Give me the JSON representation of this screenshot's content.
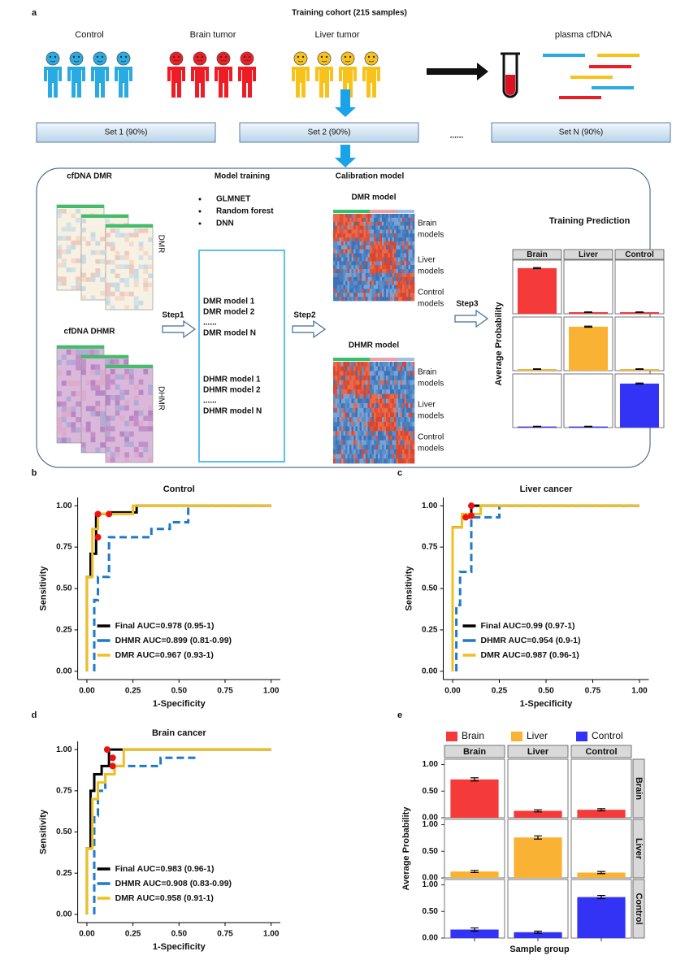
{
  "panel_a": {
    "label": "a",
    "title": "Training cohort (215 samples)",
    "groups": [
      "Control",
      "Brain tumor",
      "Liver tumor"
    ],
    "plasma": "plasma cfDNA",
    "sets": [
      "Set 1 (90%)",
      "Set 2 (90%)",
      "Set N (90%)"
    ],
    "ellipsis": "......",
    "sections": {
      "dmr": "cfDNA DMR",
      "dhmr": "cfDNA DHMR",
      "training": "Model training",
      "calibration": "Calibration model"
    },
    "methods": [
      "GLMNET",
      "Random forest",
      "DNN"
    ],
    "heatmap_labels": [
      "DMR",
      "DHMR"
    ],
    "steps": [
      "Step1",
      "Step2",
      "Step3"
    ],
    "dmr_models": [
      "DMR model 1",
      "DMR model 2",
      "......",
      "DMR model N"
    ],
    "dhmr_models": [
      "DHMR model 1",
      "DHMR model 2",
      "......",
      "DHMR model N"
    ],
    "calibration_titles": [
      "DMR model",
      "DHMR model"
    ],
    "calibration_rows": [
      [
        "Brain",
        "models"
      ],
      [
        "Liver",
        "models"
      ],
      [
        "Control",
        "models"
      ]
    ]
  },
  "chart_data": [
    {
      "type": "facet_bar",
      "title": "Training Prediction",
      "ylabel": "Average Probability",
      "columns": [
        "Brain",
        "Liver",
        "Control"
      ],
      "ylim": [
        0,
        1
      ],
      "series": [
        {
          "color": "#f53a3a",
          "values": [
            0.85,
            0.03,
            0.03
          ],
          "errors": [
            0.01,
            0.005,
            0.005
          ]
        },
        {
          "color": "#f9b233",
          "values": [
            0.03,
            0.82,
            0.03
          ],
          "errors": [
            0.005,
            0.01,
            0.005
          ]
        },
        {
          "color": "#3333f5",
          "values": [
            0.02,
            0.02,
            0.82
          ],
          "errors": [
            0.005,
            0.005,
            0.01
          ]
        }
      ]
    },
    {
      "type": "roc",
      "label": "b",
      "title": "Control",
      "xlabel": "1-Specificity",
      "ylabel": "Sensitivity",
      "xlim": [
        -0.05,
        1.05
      ],
      "ylim": [
        -0.05,
        1.05
      ],
      "xticks": [
        {
          "value": 0,
          "label": "0.00"
        },
        {
          "value": 0.25,
          "label": "0.25"
        },
        {
          "value": 0.5,
          "label": "0.50"
        },
        {
          "value": 0.75,
          "label": "0.75"
        },
        {
          "value": 1,
          "label": "1.00"
        }
      ],
      "yticks": [
        {
          "value": 0,
          "label": "0.00"
        },
        {
          "value": 0.25,
          "label": "0.25"
        },
        {
          "value": 0.5,
          "label": "0.50"
        },
        {
          "value": 0.75,
          "label": "0.75"
        },
        {
          "value": 1,
          "label": "1.00"
        }
      ],
      "series": [
        {
          "name": "Final AUC=0.978 (0.95-1)",
          "color": "#000000",
          "linestyle": "solid",
          "x": [
            0,
            0,
            0.02,
            0.02,
            0.05,
            0.05,
            0.12,
            0.12,
            0.27,
            0.27,
            1
          ],
          "values": [
            0,
            0.57,
            0.57,
            0.71,
            0.71,
            0.95,
            0.95,
            0.96,
            0.96,
            1,
            1
          ]
        },
        {
          "name": "DHMR AUC=0.899 (0.81-0.99)",
          "color": "#1f78c8",
          "linestyle": "dashed",
          "x": [
            0.04,
            0.04,
            0.06,
            0.06,
            0.12,
            0.12,
            0.35,
            0.35,
            0.45,
            0.45,
            0.55,
            0.55,
            1
          ],
          "values": [
            0,
            0.43,
            0.43,
            0.57,
            0.57,
            0.81,
            0.81,
            0.86,
            0.86,
            0.9,
            0.9,
            1,
            1
          ]
        },
        {
          "name": "DMR AUC=0.967 (0.93-1)",
          "color": "#f0c020",
          "linestyle": "solid",
          "x": [
            0,
            0,
            0.03,
            0.03,
            0.06,
            0.06,
            0.25,
            0.25,
            1
          ],
          "values": [
            0,
            0.57,
            0.57,
            0.86,
            0.86,
            0.95,
            0.95,
            1,
            1
          ]
        }
      ],
      "cutoff_points": {
        "color": "#ee1111",
        "x": [
          0.06,
          0.12,
          0.06
        ],
        "values": [
          0.95,
          0.95,
          0.81
        ]
      }
    },
    {
      "type": "roc",
      "label": "c",
      "title": "Liver cancer",
      "xlabel": "1-Specificity",
      "ylabel": "Sensitivity",
      "xlim": [
        -0.05,
        1.05
      ],
      "ylim": [
        -0.05,
        1.05
      ],
      "xticks": [
        {
          "value": 0,
          "label": "0.00"
        },
        {
          "value": 0.25,
          "label": "0.25"
        },
        {
          "value": 0.5,
          "label": "0.50"
        },
        {
          "value": 0.75,
          "label": "0.75"
        },
        {
          "value": 1,
          "label": "1.00"
        }
      ],
      "yticks": [
        {
          "value": 0,
          "label": "0.00"
        },
        {
          "value": 0.25,
          "label": "0.25"
        },
        {
          "value": 0.5,
          "label": "0.50"
        },
        {
          "value": 0.75,
          "label": "0.75"
        },
        {
          "value": 1,
          "label": "1.00"
        }
      ],
      "series": [
        {
          "name": "Final AUC=0.99 (0.97-1)",
          "color": "#000000",
          "linestyle": "solid",
          "x": [
            0,
            0,
            0.05,
            0.05,
            0.1,
            0.1,
            1
          ],
          "values": [
            0,
            0.87,
            0.87,
            0.93,
            0.93,
            1,
            1
          ]
        },
        {
          "name": "DHMR AUC=0.954 (0.9-1)",
          "color": "#1f78c8",
          "linestyle": "dashed",
          "x": [
            0.02,
            0.02,
            0.04,
            0.04,
            0.1,
            0.1,
            0.25,
            0.25,
            1
          ],
          "values": [
            0,
            0.4,
            0.4,
            0.6,
            0.6,
            0.93,
            0.93,
            1,
            1
          ]
        },
        {
          "name": "DMR AUC=0.987 (0.96-1)",
          "color": "#f0c020",
          "linestyle": "solid",
          "x": [
            0,
            0,
            0.05,
            0.05,
            0.15,
            0.15,
            1
          ],
          "values": [
            0,
            0.87,
            0.87,
            0.95,
            0.95,
            1,
            1
          ]
        }
      ],
      "cutoff_points": {
        "color": "#ee1111",
        "x": [
          0.07,
          0.1,
          0.1
        ],
        "values": [
          0.93,
          0.94,
          1
        ]
      }
    },
    {
      "type": "roc",
      "label": "d",
      "title": "Brain cancer",
      "xlabel": "1-Specificity",
      "ylabel": "Sensitivity",
      "xlim": [
        -0.05,
        1.05
      ],
      "ylim": [
        -0.05,
        1.05
      ],
      "xticks": [
        {
          "value": 0,
          "label": "0.00"
        },
        {
          "value": 0.25,
          "label": "0.25"
        },
        {
          "value": 0.5,
          "label": "0.50"
        },
        {
          "value": 0.75,
          "label": "0.75"
        },
        {
          "value": 1,
          "label": "1.00"
        }
      ],
      "yticks": [
        {
          "value": 0,
          "label": "0.00"
        },
        {
          "value": 0.25,
          "label": "0.25"
        },
        {
          "value": 0.5,
          "label": "0.50"
        },
        {
          "value": 0.75,
          "label": "0.75"
        },
        {
          "value": 1,
          "label": "1.00"
        }
      ],
      "series": [
        {
          "name": "Final AUC=0.983 (0.96-1)",
          "color": "#000000",
          "linestyle": "solid",
          "x": [
            0,
            0,
            0.02,
            0.02,
            0.04,
            0.04,
            0.08,
            0.08,
            0.12,
            0.12,
            1
          ],
          "values": [
            0,
            0.4,
            0.4,
            0.75,
            0.75,
            0.85,
            0.85,
            0.9,
            0.9,
            1,
            1
          ]
        },
        {
          "name": "DHMR AUC=0.908 (0.83-0.99)",
          "color": "#1f78c8",
          "linestyle": "dashed",
          "x": [
            0.04,
            0.04,
            0.06,
            0.06,
            0.1,
            0.1,
            0.15,
            0.15,
            0.4,
            0.4,
            0.6
          ],
          "values": [
            0,
            0.6,
            0.6,
            0.75,
            0.75,
            0.85,
            0.85,
            0.9,
            0.9,
            0.95,
            0.95
          ]
        },
        {
          "name": "DMR AUC=0.958 (0.91-1)",
          "color": "#f0c020",
          "linestyle": "solid",
          "x": [
            0,
            0,
            0.03,
            0.03,
            0.06,
            0.06,
            0.1,
            0.1,
            0.15,
            0.15,
            0.2,
            0.2,
            1
          ],
          "values": [
            0,
            0.4,
            0.4,
            0.7,
            0.7,
            0.8,
            0.8,
            0.85,
            0.85,
            0.9,
            0.9,
            1,
            1
          ]
        }
      ],
      "cutoff_points": {
        "color": "#ee1111",
        "x": [
          0.11,
          0.14,
          0.14
        ],
        "values": [
          1,
          0.95,
          0.9
        ]
      }
    },
    {
      "type": "facet_bar",
      "label": "e",
      "legend": true,
      "xlabel": "Sample group",
      "ylabel": "Average Probability",
      "columns": [
        "Brain",
        "Liver",
        "Control"
      ],
      "ylim": [
        0,
        1.1
      ],
      "yticks": [
        {
          "value": 0,
          "label": "0.00"
        },
        {
          "value": 0.5,
          "label": "0.50"
        },
        {
          "value": 1,
          "label": "1.00"
        }
      ],
      "series": [
        {
          "name": "Brain",
          "color": "#f53a3a",
          "values": [
            0.72,
            0.13,
            0.15
          ],
          "errors": [
            0.03,
            0.02,
            0.02
          ]
        },
        {
          "name": "Liver",
          "color": "#f9b233",
          "values": [
            0.12,
            0.76,
            0.1
          ],
          "errors": [
            0.02,
            0.03,
            0.02
          ]
        },
        {
          "name": "Control",
          "color": "#3333f5",
          "values": [
            0.16,
            0.11,
            0.77
          ],
          "errors": [
            0.03,
            0.02,
            0.03
          ]
        }
      ]
    }
  ]
}
